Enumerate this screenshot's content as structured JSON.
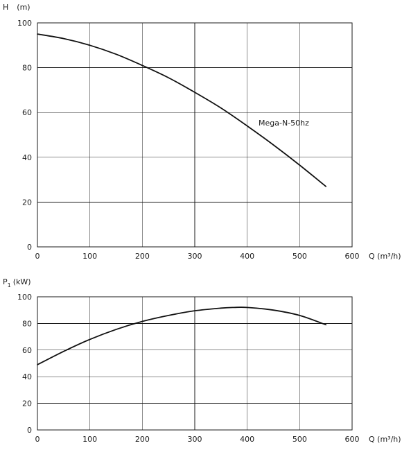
{
  "chart_data": [
    {
      "type": "line",
      "ylabel_main": "H",
      "ylabel_unit": "(m)",
      "xlabel": "Q (m³/h)",
      "xlim": [
        0,
        600
      ],
      "ylim": [
        0,
        100
      ],
      "x_ticks": [
        0,
        100,
        200,
        300,
        400,
        500,
        600
      ],
      "y_ticks": [
        0,
        20,
        40,
        60,
        80,
        100
      ],
      "grid": true,
      "annotations": [
        {
          "text": "Mega-N-50hz"
        }
      ],
      "series": [
        {
          "name": "Mega-N-50hz",
          "points": [
            [
              0,
              95
            ],
            [
              50,
              93
            ],
            [
              100,
              90
            ],
            [
              150,
              86
            ],
            [
              200,
              81
            ],
            [
              250,
              75.5
            ],
            [
              300,
              69
            ],
            [
              350,
              62
            ],
            [
              400,
              54
            ],
            [
              450,
              45.5
            ],
            [
              500,
              36.5
            ],
            [
              550,
              27
            ]
          ]
        }
      ]
    },
    {
      "type": "line",
      "ylabel_main": "P",
      "ylabel_sub": "1",
      "ylabel_unit": "(kW)",
      "xlabel": "Q (m³/h)",
      "xlim": [
        0,
        600
      ],
      "ylim": [
        0,
        100
      ],
      "x_ticks": [
        0,
        100,
        200,
        300,
        400,
        500,
        600
      ],
      "y_ticks": [
        0,
        20,
        40,
        60,
        80,
        100
      ],
      "grid": true,
      "series": [
        {
          "points": [
            [
              0,
              49
            ],
            [
              50,
              59
            ],
            [
              100,
              68
            ],
            [
              150,
              75.5
            ],
            [
              200,
              81.5
            ],
            [
              250,
              86
            ],
            [
              300,
              89.5
            ],
            [
              350,
              91.5
            ],
            [
              375,
              92
            ],
            [
              400,
              92
            ],
            [
              450,
              90
            ],
            [
              500,
              86
            ],
            [
              550,
              79
            ]
          ]
        }
      ]
    }
  ]
}
